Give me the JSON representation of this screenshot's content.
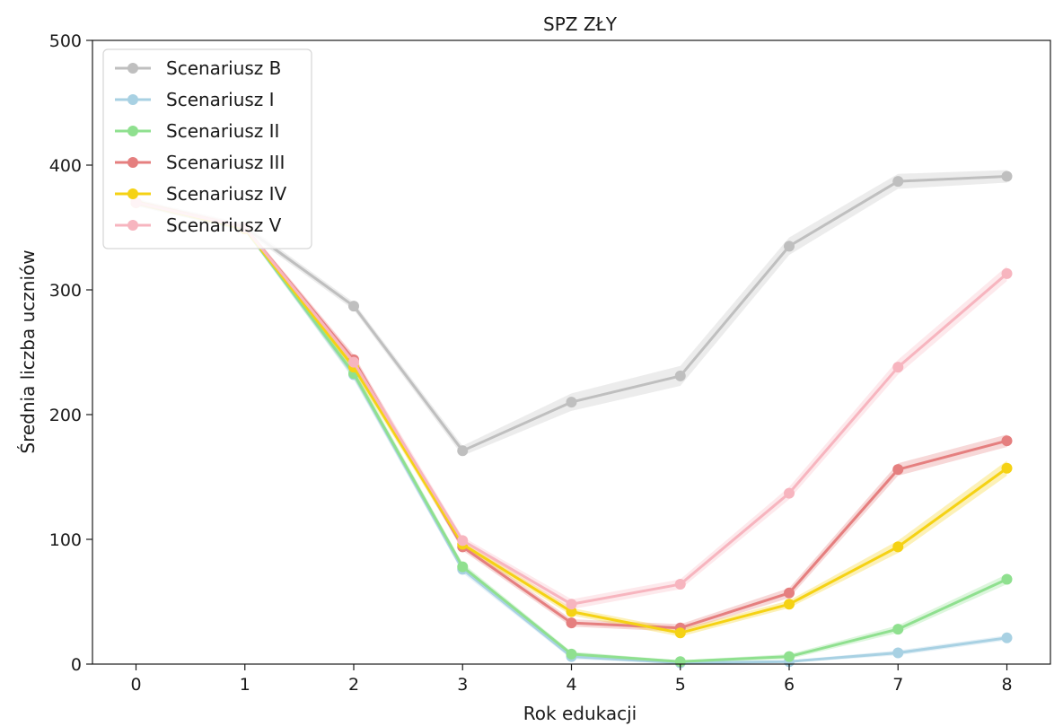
{
  "chart_data": {
    "type": "line",
    "title": "SPZ ZŁY",
    "xlabel": "Rok edukacji",
    "ylabel": "Średnia liczba uczniów",
    "x": [
      0,
      1,
      2,
      3,
      4,
      5,
      6,
      7,
      8
    ],
    "xlim": [
      -0.4,
      8.4
    ],
    "ylim": [
      0,
      500
    ],
    "yticks": [
      0,
      100,
      200,
      300,
      400,
      500
    ],
    "grid": false,
    "legend_position": "top-left",
    "series": [
      {
        "name": "Scenariusz B",
        "color": "#bfbfbf",
        "values": [
          370,
          350,
          287,
          171,
          210,
          231,
          335,
          387,
          391
        ],
        "band": [
          3,
          3,
          3,
          4,
          7,
          8,
          7,
          6,
          5
        ]
      },
      {
        "name": "Scenariusz I",
        "color": "#a8d1e3",
        "values": [
          370,
          349,
          232,
          76,
          6,
          1,
          2,
          9,
          21
        ],
        "band": [
          2,
          2,
          4,
          3,
          2,
          1,
          1,
          2,
          2
        ]
      },
      {
        "name": "Scenariusz II",
        "color": "#8fe08f",
        "values": [
          370,
          349,
          233,
          78,
          8,
          2,
          6,
          28,
          68
        ],
        "band": [
          2,
          2,
          4,
          3,
          2,
          1,
          2,
          3,
          4
        ]
      },
      {
        "name": "Scenariusz III",
        "color": "#e57f7f",
        "values": [
          370,
          350,
          244,
          94,
          33,
          29,
          57,
          156,
          179
        ],
        "band": [
          2,
          2,
          4,
          3,
          3,
          3,
          4,
          5,
          5
        ]
      },
      {
        "name": "Scenariusz IV",
        "color": "#f5d214",
        "values": [
          370,
          349,
          238,
          96,
          42,
          25,
          48,
          94,
          157
        ],
        "band": [
          2,
          2,
          4,
          3,
          3,
          3,
          3,
          5,
          6
        ]
      },
      {
        "name": "Scenariusz V",
        "color": "#f7b5bf",
        "values": [
          370,
          350,
          242,
          99,
          48,
          64,
          137,
          238,
          313
        ],
        "band": [
          2,
          2,
          5,
          3,
          4,
          4,
          5,
          6,
          6
        ]
      }
    ]
  }
}
